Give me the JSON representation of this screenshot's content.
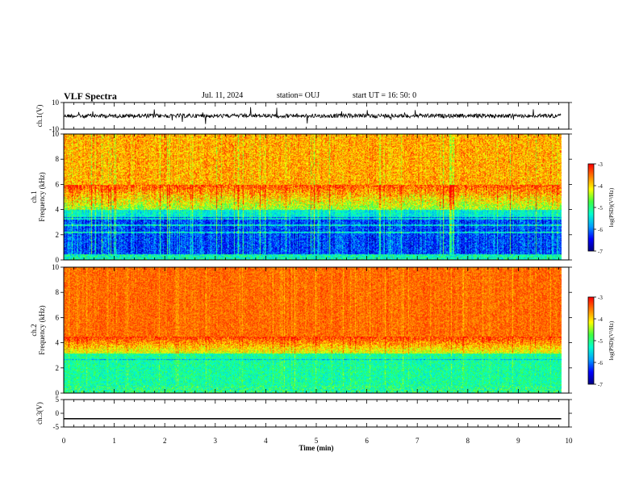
{
  "header": {
    "title": "VLF Spectra",
    "date": "Jul. 11, 2024",
    "station": "station= OUJ",
    "start": "start UT =  16: 50: 0"
  },
  "chart_data": [
    {
      "type": "line",
      "name": "ch1-waveform",
      "ylabel": "ch.1(V)",
      "ylim": [
        -10,
        10
      ],
      "ytick_labels": [
        "10",
        "-10"
      ],
      "baseline_value": 0
    },
    {
      "type": "heatmap",
      "name": "ch1-spectrogram",
      "ylabel": "ch.1\nFrequency (kHz)",
      "ylabel_lines": [
        "ch.1",
        "Frequency (kHz)"
      ],
      "ylim": [
        0,
        10
      ],
      "ytick_labels": [
        "0",
        "2",
        "4",
        "6",
        "8",
        "10"
      ],
      "xlim": [
        0,
        10
      ],
      "data_end_min": 9.85,
      "colorbar": {
        "label": "log(PSD)(V²/Hz)",
        "range": [
          -7,
          -3
        ],
        "tick_labels": [
          "-3",
          "-4",
          "-5",
          "-6",
          "-7"
        ]
      }
    },
    {
      "type": "heatmap",
      "name": "ch2-spectrogram",
      "ylabel": "ch.2\nFrequency (kHz)",
      "ylabel_lines": [
        "ch.2",
        "Frequency (kHz)"
      ],
      "ylim": [
        0,
        10
      ],
      "ytick_labels": [
        "0",
        "2",
        "4",
        "6",
        "8",
        "10"
      ],
      "xlim": [
        0,
        10
      ],
      "data_end_min": 9.85,
      "colorbar": {
        "label": "log(PSD)(V²/Hz)",
        "range": [
          -7,
          -3
        ],
        "tick_labels": [
          "-3",
          "-4",
          "-5",
          "-6",
          "-7"
        ]
      }
    },
    {
      "type": "line",
      "name": "ch3-waveform",
      "ylabel": "ch.3(V)",
      "ylim": [
        -5,
        5
      ],
      "ytick_labels": [
        "5",
        "0",
        "-5"
      ],
      "level_value": -2
    }
  ],
  "xaxis": {
    "label": "Time (min)",
    "tick_labels": [
      "0",
      "1",
      "2",
      "3",
      "4",
      "5",
      "6",
      "7",
      "8",
      "9",
      "10"
    ],
    "range": [
      0,
      10
    ]
  },
  "colors": {
    "colormap": [
      "#000080",
      "#0000ff",
      "#00a0ff",
      "#00ffd0",
      "#40ff40",
      "#ffff00",
      "#ff8000",
      "#ff0000",
      "#ffffff"
    ]
  }
}
